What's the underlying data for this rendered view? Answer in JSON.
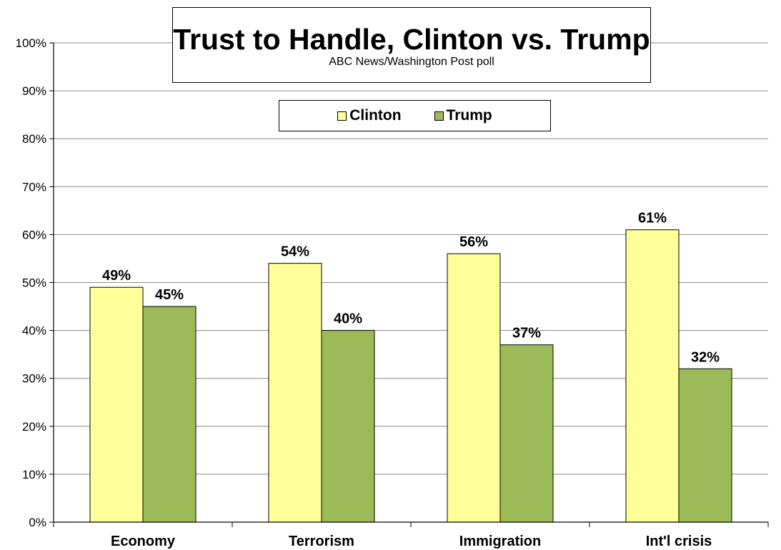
{
  "chart_data": {
    "type": "bar",
    "title": "Trust to Handle, Clinton vs. Trump",
    "subtitle": "ABC News/Washington  Post poll",
    "categories": [
      "Economy",
      "Terrorism",
      "Immigration",
      "Int'l crisis"
    ],
    "series": [
      {
        "name": "Clinton",
        "color": "#ffff99",
        "values": [
          49,
          54,
          56,
          61
        ]
      },
      {
        "name": "Trump",
        "color": "#9bbb59",
        "values": [
          45,
          40,
          37,
          32
        ]
      }
    ],
    "data_labels": [
      [
        "49%",
        "54%",
        "56%",
        "61%"
      ],
      [
        "45%",
        "40%",
        "37%",
        "32%"
      ]
    ],
    "ylim": [
      0,
      100
    ],
    "yticks": [
      0,
      10,
      20,
      30,
      40,
      50,
      60,
      70,
      80,
      90,
      100
    ],
    "ytick_labels": [
      "0%",
      "10%",
      "20%",
      "30%",
      "40%",
      "50%",
      "60%",
      "70%",
      "80%",
      "90%",
      "100%"
    ],
    "grid": true,
    "legend": "top-center"
  }
}
